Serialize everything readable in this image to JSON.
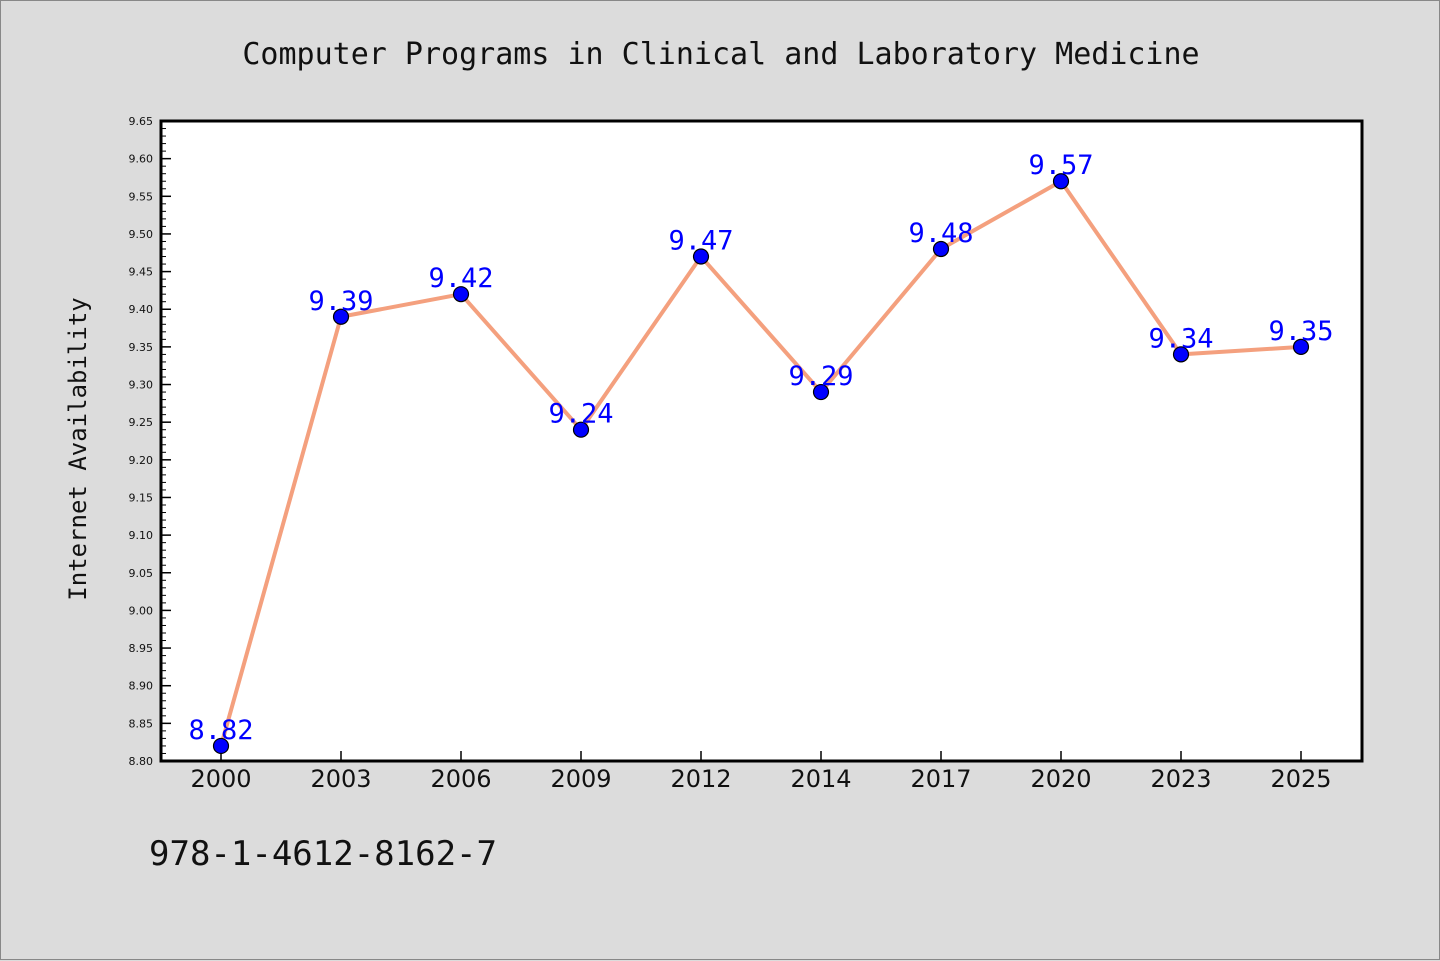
{
  "chart_data": {
    "type": "line",
    "title": "Computer Programs in Clinical and Laboratory Medicine",
    "xlabel": "",
    "ylabel": "Internet Availability",
    "categories": [
      "2000",
      "2003",
      "2006",
      "2009",
      "2012",
      "2014",
      "2017",
      "2020",
      "2023",
      "2025"
    ],
    "series": [
      {
        "values": [
          8.82,
          9.39,
          9.42,
          9.24,
          9.47,
          9.29,
          9.48,
          9.57,
          9.34,
          9.35
        ]
      }
    ],
    "data_labels": [
      "8.82",
      "9.39",
      "9.42",
      "9.24",
      "9.47",
      "9.29",
      "9.48",
      "9.57",
      "9.34",
      "9.35"
    ],
    "ylim": [
      8.8,
      9.65
    ],
    "yticks": [
      "8.80",
      "8.85",
      "8.90",
      "8.95",
      "9.00",
      "9.05",
      "9.10",
      "9.15",
      "9.20",
      "9.25",
      "9.30",
      "9.35",
      "9.40",
      "9.45",
      "9.50",
      "9.55",
      "9.60",
      "9.65"
    ],
    "grid": false,
    "legend": "none",
    "colors": {
      "line": "#f4a07e",
      "marker": "#0000ff",
      "label": "#0000ff",
      "background": "#dcdcdc",
      "plot_area": "#ffffff"
    }
  },
  "footer": {
    "isbn": "978-1-4612-8162-7"
  }
}
